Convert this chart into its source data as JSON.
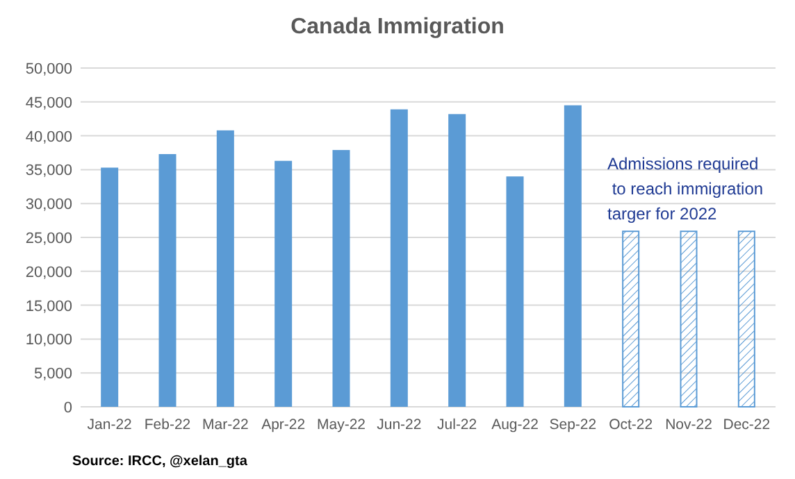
{
  "chart_data": {
    "type": "bar",
    "title": "Canada Immigration",
    "categories": [
      "Jan-22",
      "Feb-22",
      "Mar-22",
      "Apr-22",
      "May-22",
      "Jun-22",
      "Jul-22",
      "Aug-22",
      "Sep-22",
      "Oct-22",
      "Nov-22",
      "Dec-22"
    ],
    "series": [
      {
        "color": "#5b9bd5",
        "values": [
          35300,
          37300,
          40800,
          36300,
          37900,
          43900,
          43200,
          34000,
          44500,
          null,
          null,
          null
        ]
      },
      {
        "color": "#5b9bd5",
        "values": [
          null,
          null,
          null,
          null,
          null,
          null,
          null,
          null,
          null,
          25900,
          25900,
          25900
        ]
      }
    ],
    "ylim": [
      0,
      50000
    ],
    "yticks": [
      {
        "value": 0,
        "label": "0"
      },
      {
        "value": 5000,
        "label": "5,000"
      },
      {
        "value": 10000,
        "label": "10,000"
      },
      {
        "value": 15000,
        "label": "15,000"
      },
      {
        "value": 20000,
        "label": "20,000"
      },
      {
        "value": 25000,
        "label": "25,000"
      },
      {
        "value": 30000,
        "label": "30,000"
      },
      {
        "value": 35000,
        "label": "35,000"
      },
      {
        "value": 40000,
        "label": "40,000"
      },
      {
        "value": 45000,
        "label": "45,000"
      },
      {
        "value": 50000,
        "label": "50,000"
      }
    ],
    "grid": "y",
    "annotations": [
      "Admissions required\n to reach immigration\ntarger for 2022",
      "Source: IRCC, @xelan_gta"
    ]
  }
}
